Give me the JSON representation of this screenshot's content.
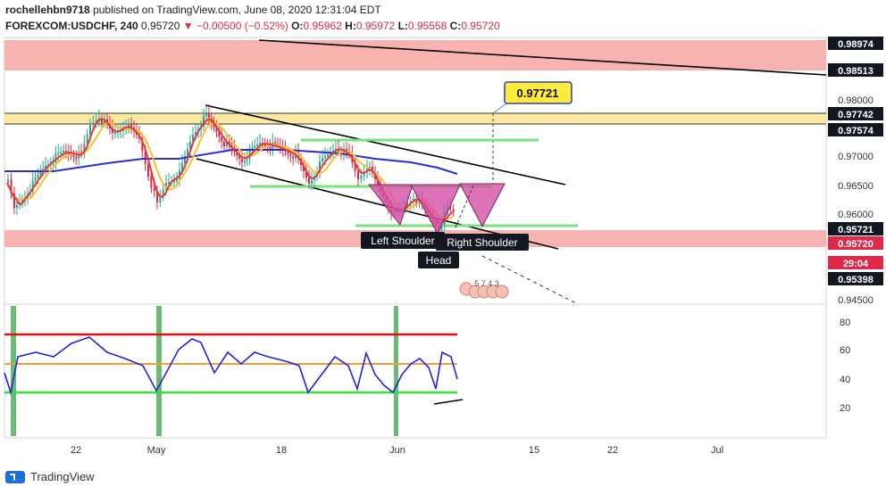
{
  "header": {
    "author": "rochellehbn9718",
    "published": "published on TradingView.com, June 08, 2020 12:31:04 EDT"
  },
  "symbol": {
    "name": "FOREXCOM:USDCHF, 240",
    "last": "0.95720",
    "change": "−0.00500 (−0.52%)",
    "o_label": "O:",
    "o": "0.95962",
    "h_label": "H:",
    "h": "0.95972",
    "l_label": "L:",
    "l": "0.95558",
    "c_label": "C:",
    "c": "0.95720"
  },
  "price_axis": {
    "labels": [
      "0.98974",
      "0.98513",
      "0.98000",
      "0.97742",
      "0.97574",
      "0.97000",
      "0.96500",
      "0.96000",
      "0.95721",
      "0.95720",
      "29:04",
      "0.95398",
      "0.94500"
    ]
  },
  "target_label": "0.97721",
  "pattern_labels": {
    "left": "Left Shoulder",
    "right": "Right Shoulder",
    "head": "Head"
  },
  "events_marker": "5 7 4 3",
  "rsi_axis": {
    "labels": [
      "80",
      "60",
      "40",
      "20"
    ]
  },
  "time_axis": {
    "labels": [
      "22",
      "May",
      "18",
      "Jun",
      "15",
      "22",
      "Jul"
    ]
  },
  "footer": {
    "brand": "TradingView"
  },
  "colors": {
    "up": "#26a69a",
    "down": "#e0284a",
    "ma_fast": "#e53935",
    "ma_mid": "#fbc02d",
    "ma_slow": "#2a2fd4",
    "resistance_zone": "#f8b3b0",
    "support_zone": "#fce9a0",
    "rsi": "#2222dd",
    "pattern": "#d54fa7"
  }
}
